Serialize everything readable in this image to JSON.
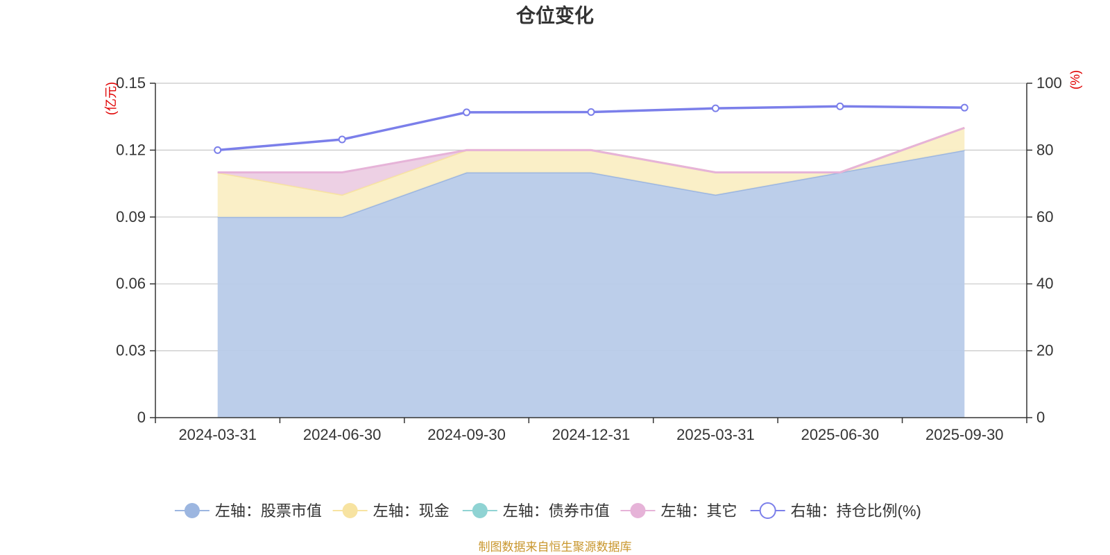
{
  "chart_data": {
    "type": "area",
    "title": "仓位变化",
    "x": [
      "2024-03-31",
      "2024-06-30",
      "2024-09-30",
      "2024-12-31",
      "2025-03-31",
      "2025-06-30",
      "2025-09-30"
    ],
    "left_axis": {
      "unit": "(亿元)",
      "ylim": [
        0,
        0.15
      ],
      "ticks": [
        "0",
        "0.03",
        "0.06",
        "0.09",
        "0.12",
        "0.15"
      ]
    },
    "right_axis": {
      "unit": "(%)",
      "ylim": [
        0,
        100
      ],
      "ticks": [
        "0",
        "20",
        "40",
        "60",
        "80",
        "100"
      ]
    },
    "stacked_series": [
      {
        "name": "左轴：股票市值",
        "color": "#9cb6e0",
        "fill": "#b8cbe9",
        "values": [
          0.09,
          0.09,
          0.11,
          0.11,
          0.1,
          0.11,
          0.12
        ]
      },
      {
        "name": "左轴：现金",
        "color": "#f7e3a1",
        "fill": "#faeec4",
        "values": [
          0.02,
          0.01,
          0.01,
          0.01,
          0.01,
          0.0,
          0.01
        ]
      },
      {
        "name": "左轴：债券市值",
        "color": "#8fd3d3",
        "fill": "#bfe6e6",
        "values": [
          0,
          0,
          0,
          0,
          0,
          0,
          0
        ]
      },
      {
        "name": "左轴：其它",
        "color": "#e6b3d8",
        "fill": "#eccde3",
        "values": [
          0.0,
          0.01,
          0.0,
          0.0,
          0.0,
          0.0,
          0.0
        ]
      }
    ],
    "line_series": {
      "name": "右轴：持仓比例(%)",
      "color": "#7b7fea",
      "values": [
        80.0,
        83.2,
        91.3,
        91.4,
        92.5,
        93.1,
        92.7
      ]
    },
    "grid": true,
    "legend_position": "bottom"
  },
  "footer": {
    "source": "制图数据来自恒生聚源数据库"
  }
}
